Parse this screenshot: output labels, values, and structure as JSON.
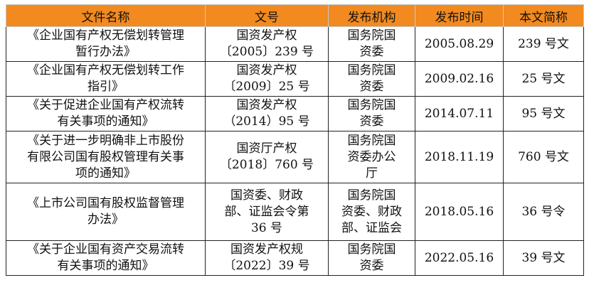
{
  "headers": [
    "文件名称",
    "文号",
    "发布机构",
    "发布时间",
    "本文简称"
  ],
  "rows": [
    {
      "name": [
        "《企业国有产权无偿划转管理",
        "暂行办法》"
      ],
      "doc_no": [
        "国资发产权",
        "〔2005〕239 号"
      ],
      "issuer": [
        "国务院国",
        "资委"
      ],
      "date": "2005.08.29",
      "short": "239 号文"
    },
    {
      "name": [
        "《企业国有产权无偿划转工作",
        "指引》"
      ],
      "doc_no": [
        "国资发产权",
        "〔2009〕25 号"
      ],
      "issuer": [
        "国务院国",
        "资委"
      ],
      "date": "2009.02.16",
      "short": "25 号文"
    },
    {
      "name": [
        "《关于促进企业国有产权流转",
        "有关事项的通知》"
      ],
      "doc_no": [
        "国资发产权",
        "（2014）95 号"
      ],
      "issuer": [
        "国务院国",
        "资委"
      ],
      "date": "2014.07.11",
      "short": "95 号文"
    },
    {
      "name": [
        "《关于进一步明确非上市股份",
        "有限公司国有股权管理有关事",
        "项的通知》"
      ],
      "doc_no": [
        "国资厅产权",
        "〔2018〕760 号"
      ],
      "issuer": [
        "国务院国",
        "资委办公",
        "厅"
      ],
      "date": "2018.11.19",
      "short": "760 号文"
    },
    {
      "name": [
        "《上市公司国有股权监督管理",
        "办法》"
      ],
      "doc_no": [
        "国资委、财政",
        "部、证监会令第",
        "36 号"
      ],
      "issuer": [
        "国务院国",
        "资委、财政",
        "部、证监会"
      ],
      "date": "2018.05.16",
      "short": "36 号令"
    },
    {
      "name": [
        "《关于企业国有资产交易流转",
        "有关事项的通知》"
      ],
      "doc_no": [
        "国资发产权规",
        "〔2022〕39 号"
      ],
      "issuer": [
        "国务院国",
        "资委"
      ],
      "date": "2022.05.16",
      "short": "39 号文"
    }
  ]
}
